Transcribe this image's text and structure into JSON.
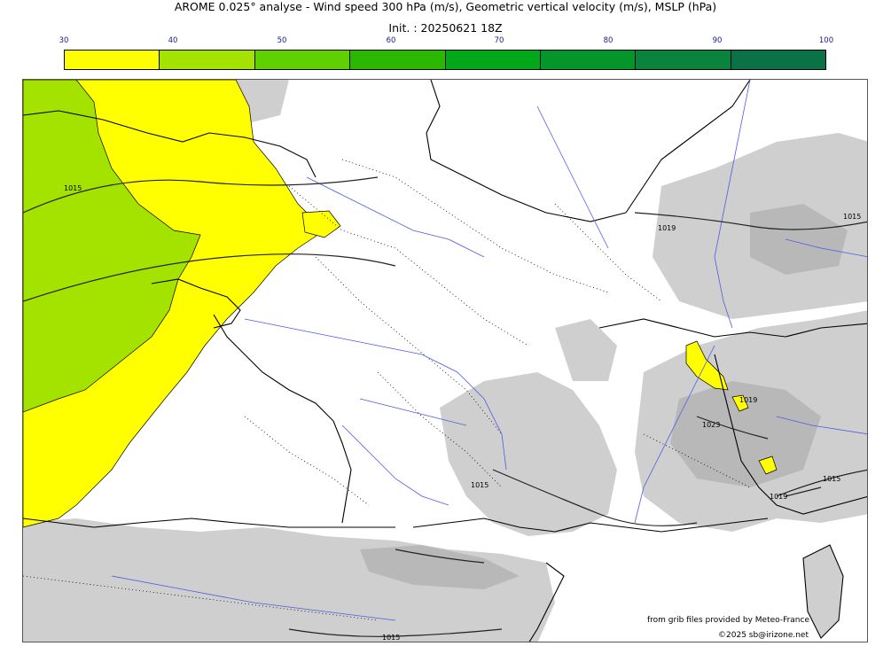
{
  "header": {
    "title": "AROME 0.025° analyse - Wind speed 300 hPa (m/s), Geometric vertical velocity (m/s), MSLP (hPa)",
    "init": "Init. : 20250621 18Z"
  },
  "colorbar": {
    "ticks": [
      "30",
      "40",
      "50",
      "60",
      "70",
      "80",
      "90",
      "100"
    ],
    "colors": [
      "#ffff00",
      "#a4e200",
      "#5fd000",
      "#2ab800",
      "#00a81a",
      "#04962a",
      "#0a843c",
      "#0a7246"
    ]
  },
  "map": {
    "wind_zone_colors": {
      "band_30_40": "#ffff00",
      "band_40_50": "#a4e200"
    },
    "terrain_color": "#cfcfcf",
    "river_color": "#4b5de0",
    "isobar_labels": [
      "1015",
      "1019",
      "1015",
      "1015",
      "1023",
      "1015",
      "1019",
      "1019",
      "1015"
    ]
  },
  "credits": {
    "source": "from grib files provided by Meteo-France",
    "copyright": "©2025 sb@irizone.net"
  }
}
